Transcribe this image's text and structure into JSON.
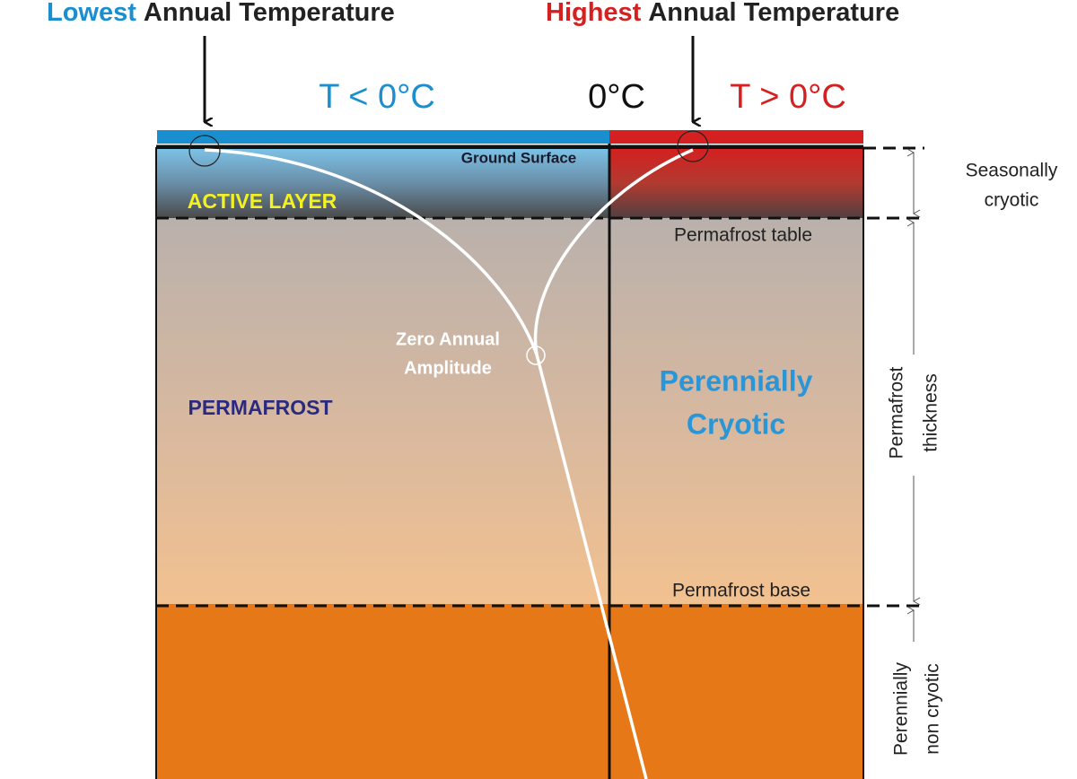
{
  "headers": {
    "lowest": {
      "emphasis": "Lowest",
      "rest": "Annual Temperature"
    },
    "highest": {
      "emphasis": "Highest",
      "rest": "Annual Temperature"
    }
  },
  "temperature_bar": {
    "below": "T < 0°C",
    "zero": "0°C",
    "above": "T > 0°C"
  },
  "layers": {
    "ground_surface": "Ground Surface",
    "active_layer": "ACTIVE LAYER",
    "permafrost_table": "Permafrost table",
    "permafrost": "PERMAFROST",
    "permafrost_base": "Permafrost base"
  },
  "zero_annual_amplitude": [
    "Zero Annual",
    "Amplitude"
  ],
  "perennially_cryotic": [
    "Perennially",
    "Cryotic"
  ],
  "zones": {
    "seasonally_cryotic": [
      "Seasonally",
      "cryotic"
    ],
    "permafrost_thickness": [
      "Permafrost",
      "thickness"
    ],
    "perennially_non_cryotic": [
      "Perennially",
      "non cryotic"
    ]
  }
}
